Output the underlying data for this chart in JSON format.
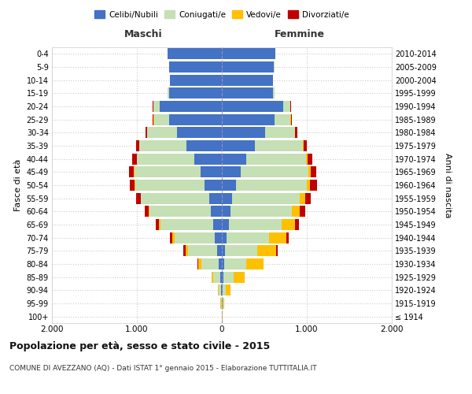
{
  "age_groups": [
    "100+",
    "95-99",
    "90-94",
    "85-89",
    "80-84",
    "75-79",
    "70-74",
    "65-69",
    "60-64",
    "55-59",
    "50-54",
    "45-49",
    "40-44",
    "35-39",
    "30-34",
    "25-29",
    "20-24",
    "15-19",
    "10-14",
    "5-9",
    "0-4"
  ],
  "birth_years": [
    "≤ 1914",
    "1915-1919",
    "1920-1924",
    "1925-1929",
    "1930-1934",
    "1935-1939",
    "1940-1944",
    "1945-1949",
    "1950-1954",
    "1955-1959",
    "1960-1964",
    "1965-1969",
    "1970-1974",
    "1975-1979",
    "1980-1984",
    "1985-1989",
    "1990-1994",
    "1995-1999",
    "2000-2004",
    "2005-2009",
    "2010-2014"
  ],
  "males": {
    "celibi": [
      2,
      4,
      10,
      20,
      40,
      60,
      80,
      100,
      130,
      150,
      200,
      250,
      320,
      420,
      530,
      620,
      730,
      620,
      610,
      620,
      640
    ],
    "coniugati": [
      2,
      8,
      30,
      80,
      200,
      340,
      480,
      620,
      720,
      800,
      820,
      780,
      680,
      550,
      350,
      180,
      80,
      20,
      5,
      2,
      1
    ],
    "vedovi": [
      0,
      2,
      5,
      20,
      40,
      30,
      25,
      20,
      10,
      5,
      5,
      3,
      2,
      2,
      1,
      1,
      0,
      0,
      0,
      0,
      0
    ],
    "divorziati": [
      0,
      0,
      0,
      0,
      5,
      20,
      30,
      40,
      50,
      55,
      60,
      55,
      50,
      40,
      20,
      10,
      5,
      2,
      0,
      0,
      0
    ]
  },
  "females": {
    "nubili": [
      2,
      5,
      10,
      20,
      30,
      40,
      60,
      80,
      100,
      120,
      170,
      220,
      290,
      390,
      510,
      620,
      720,
      600,
      600,
      615,
      630
    ],
    "coniugate": [
      2,
      10,
      40,
      120,
      260,
      380,
      500,
      620,
      720,
      800,
      830,
      800,
      700,
      560,
      350,
      190,
      85,
      20,
      5,
      2,
      1
    ],
    "vedove": [
      3,
      15,
      50,
      130,
      200,
      220,
      200,
      160,
      100,
      60,
      40,
      25,
      15,
      10,
      5,
      3,
      1,
      0,
      0,
      0,
      0
    ],
    "divorziate": [
      0,
      0,
      0,
      0,
      5,
      20,
      30,
      50,
      60,
      70,
      80,
      70,
      60,
      40,
      20,
      10,
      5,
      2,
      0,
      0,
      0
    ]
  },
  "colors": {
    "celibi": "#4472c4",
    "coniugati": "#c5e0b4",
    "vedovi": "#ffc000",
    "divorziati": "#c00000"
  },
  "xlim": 2000,
  "title": "Popolazione per età, sesso e stato civile - 2015",
  "subtitle": "COMUNE DI AVEZZANO (AQ) - Dati ISTAT 1° gennaio 2015 - Elaborazione TUTTITALIA.IT",
  "ylabel_left": "Fasce di età",
  "ylabel_right": "Anni di nascita",
  "xlabel_maschi": "Maschi",
  "xlabel_femmine": "Femmine",
  "legend_labels": [
    "Celibi/Nubili",
    "Coniugati/e",
    "Vedovi/e",
    "Divorziati/e"
  ],
  "xtick_labels": [
    "2.000",
    "1.000",
    "0",
    "1.000",
    "2.000"
  ],
  "background_color": "#ffffff",
  "grid_color": "#cccccc"
}
